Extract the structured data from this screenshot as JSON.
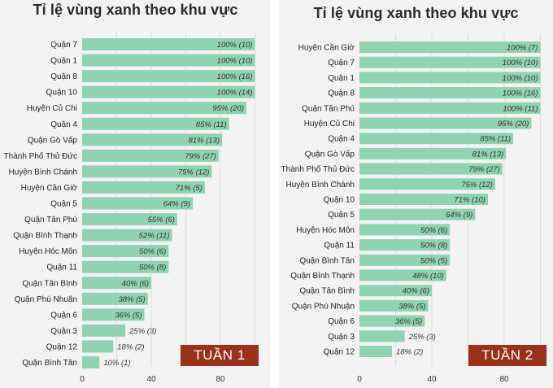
{
  "chart_data": [
    {
      "type": "bar",
      "orientation": "horizontal",
      "title": "Tỉ lệ vùng xanh theo khu vực",
      "badge": "TUẦN 1",
      "xlim": [
        0,
        100
      ],
      "xticks": [
        0,
        40,
        80
      ],
      "grid": true,
      "categories": [
        "Quận 7",
        "Quận 1",
        "Quận 8",
        "Quận 10",
        "Huyện Củ Chi",
        "Quận 4",
        "Quận Gò Vấp",
        "Thành Phố Thủ Đức",
        "Huyện Bình Chánh",
        "Huyện Cần Giờ",
        "Quận 5",
        "Quận Tân Phú",
        "Quận Bình Thạnh",
        "Huyện Hóc Môn",
        "Quận 11",
        "Quận Tân Bình",
        "Quận Phú Nhuận",
        "Quận 6",
        "Quận 3",
        "Quận 12",
        "Quận Bình Tân"
      ],
      "values": [
        100,
        100,
        100,
        100,
        95,
        85,
        81,
        79,
        75,
        71,
        64,
        55,
        52,
        50,
        50,
        40,
        38,
        36,
        25,
        18,
        10
      ],
      "counts": [
        10,
        10,
        16,
        14,
        20,
        11,
        13,
        27,
        12,
        5,
        9,
        6,
        11,
        6,
        8,
        6,
        5,
        5,
        3,
        2,
        1
      ],
      "labels": [
        "100% (10)",
        "100% (10)",
        "100% (16)",
        "100% (14)",
        "95% (20)",
        "85% (11)",
        "81% (13)",
        "79% (27)",
        "75% (12)",
        "71% (5)",
        "64% (9)",
        "55% (6)",
        "52% (11)",
        "50% (6)",
        "50% (8)",
        "40% (6)",
        "38% (5)",
        "36% (5)",
        "25% (3)",
        "18% (2)",
        "10% (1)"
      ]
    },
    {
      "type": "bar",
      "orientation": "horizontal",
      "title": "Tỉ lệ vùng xanh theo khu vực",
      "badge": "TUẦN 2",
      "xlim": [
        0,
        100
      ],
      "xticks": [
        0,
        40,
        80
      ],
      "grid": true,
      "categories": [
        "Huyện Cần Giờ",
        "Quận 7",
        "Quận 1",
        "Quận 8",
        "Quận Tân Phú",
        "Huyện Củ Chi",
        "Quận 4",
        "Quận Gò Vấp",
        "Thành Phố Thủ Đức",
        "Huyện Bình Chánh",
        "Quận 10",
        "Quận 5",
        "Huyện Hóc Môn",
        "Quận 11",
        "Quận Bình Tân",
        "Quận Bình Thạnh",
        "Quận Tân Bình",
        "Quận Phú Nhuận",
        "Quận 6",
        "Quận 3",
        "Quận 12"
      ],
      "values": [
        100,
        100,
        100,
        100,
        100,
        95,
        85,
        81,
        79,
        75,
        71,
        64,
        50,
        50,
        50,
        48,
        40,
        38,
        36,
        25,
        18
      ],
      "counts": [
        7,
        10,
        10,
        16,
        11,
        20,
        11,
        13,
        27,
        12,
        10,
        9,
        6,
        8,
        5,
        10,
        6,
        5,
        5,
        3,
        2
      ],
      "labels": [
        "100% (7)",
        "100% (10)",
        "100% (10)",
        "100% (16)",
        "100% (11)",
        "95% (20)",
        "85% (11)",
        "81% (13)",
        "79% (27)",
        "75% (12)",
        "71% (10)",
        "64% (9)",
        "50% (6)",
        "50% (8)",
        "50% (5)",
        "48% (10)",
        "40% (6)",
        "38% (5)",
        "36% (5)",
        "25% (3)",
        "18% (2)"
      ]
    }
  ]
}
